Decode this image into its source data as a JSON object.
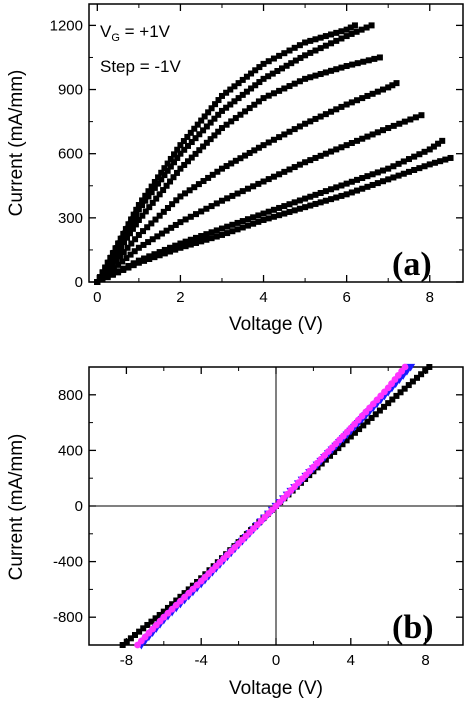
{
  "chart_data": [
    {
      "type": "scatter",
      "panel_label": "(a)",
      "xlabel": "Voltage (V)",
      "ylabel": "Current (mA/mm)",
      "xlim": [
        -0.2,
        8.8
      ],
      "ylim": [
        0,
        1300
      ],
      "x_ticks": [
        0,
        2,
        4,
        6,
        8
      ],
      "y_ticks": [
        0,
        300,
        600,
        900,
        1200
      ],
      "annotations": {
        "vg_main": "V",
        "vg_sub": "G",
        "vg_rest": " = +1V",
        "step": "Step = -1V"
      },
      "grid": false,
      "marker_color": "#000000",
      "series": [
        {
          "x": [
            0,
            1,
            2,
            3,
            4,
            5,
            6,
            6.2
          ],
          "y": [
            0,
            360,
            640,
            870,
            1020,
            1120,
            1180,
            1200
          ]
        },
        {
          "x": [
            0,
            1,
            2,
            3,
            4,
            5,
            6,
            6.6
          ],
          "y": [
            0,
            340,
            600,
            800,
            950,
            1060,
            1150,
            1200
          ]
        },
        {
          "x": [
            0,
            1,
            2,
            3,
            4,
            5,
            6,
            6.8
          ],
          "y": [
            0,
            290,
            530,
            720,
            860,
            950,
            1010,
            1050
          ]
        },
        {
          "x": [
            0,
            1,
            2,
            3,
            4,
            5,
            6,
            7,
            7.2
          ],
          "y": [
            0,
            220,
            400,
            530,
            640,
            740,
            830,
            910,
            930
          ]
        },
        {
          "x": [
            0,
            1,
            2,
            3,
            4,
            5,
            6,
            7,
            7.8
          ],
          "y": [
            0,
            160,
            280,
            380,
            470,
            560,
            640,
            720,
            780
          ]
        },
        {
          "x": [
            0,
            1,
            2,
            3,
            4,
            5,
            6,
            7,
            8,
            8.3
          ],
          "y": [
            0,
            100,
            180,
            250,
            320,
            390,
            460,
            530,
            620,
            660
          ]
        },
        {
          "x": [
            0,
            1,
            2,
            3,
            4,
            5,
            6,
            7,
            8,
            8.5
          ],
          "y": [
            0,
            90,
            160,
            220,
            290,
            350,
            410,
            480,
            550,
            580
          ]
        }
      ]
    },
    {
      "type": "scatter",
      "panel_label": "(b)",
      "xlabel": "Voltage (V)",
      "ylabel": "Current (mA/mm)",
      "xlim": [
        -10,
        10
      ],
      "ylim": [
        -1000,
        1000
      ],
      "x_ticks": [
        -8,
        -4,
        0,
        4,
        8
      ],
      "y_ticks": [
        -800,
        -400,
        0,
        400,
        800
      ],
      "zero_lines": true,
      "grid": false,
      "series": [
        {
          "color": "#000000",
          "marker": "square",
          "x": [
            -8.2,
            -6,
            -4,
            -2,
            0,
            2,
            4,
            6,
            8.2
          ],
          "y": [
            -1000,
            -760,
            -520,
            -260,
            0,
            250,
            500,
            740,
            1000
          ]
        },
        {
          "color": "#1a1aff",
          "marker": "triangle",
          "x": [
            -7.2,
            -6,
            -4,
            -2,
            0,
            2,
            4,
            6,
            7.2
          ],
          "y": [
            -1000,
            -820,
            -560,
            -280,
            0,
            270,
            540,
            820,
            1000
          ]
        },
        {
          "color": "#ff33ff",
          "marker": "circle",
          "x": [
            -7.4,
            -6,
            -4,
            -2,
            0,
            2,
            4,
            6,
            6.9
          ],
          "y": [
            -1000,
            -800,
            -540,
            -270,
            0,
            280,
            560,
            850,
            1000
          ]
        }
      ]
    }
  ]
}
